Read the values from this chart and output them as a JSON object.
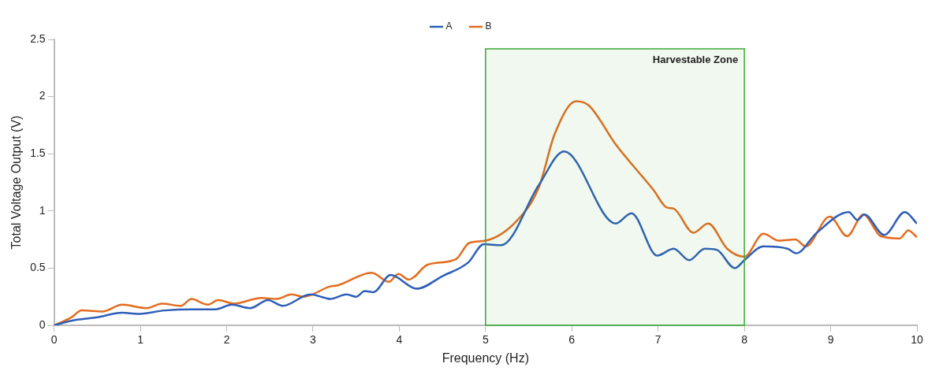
{
  "chart_data": {
    "type": "line",
    "xlabel": "Frequency (Hz)",
    "ylabel": "Total Voltage Output (V)",
    "xlim": [
      0,
      10
    ],
    "xticks": [
      0,
      1,
      2,
      3,
      4,
      5,
      6,
      7,
      8,
      9,
      10
    ],
    "ylim": [
      0,
      2.5
    ],
    "yticks": [
      0,
      0.5,
      1,
      1.5,
      2,
      2.5
    ],
    "grid": false,
    "legend": "top",
    "marker": "none",
    "line_style": "solid",
    "bands": [
      {
        "axis": "x",
        "from": 5,
        "to": 8,
        "label": "Harvestable Zone",
        "color": "#3aaa35"
      }
    ],
    "series": [
      {
        "name": "A",
        "color": "#2e5eb8",
        "x": [
          0,
          0.2,
          0.5,
          0.79,
          0.97,
          1.28,
          1.6,
          1.87,
          2.06,
          2.27,
          2.48,
          2.65,
          2.97,
          3.14,
          3.2,
          3.39,
          3.5,
          3.6,
          3.7,
          3.9,
          4.2,
          4.5,
          4.8,
          4.98,
          5.18,
          5.62,
          5.91,
          6.51,
          6.69,
          6.99,
          7.18,
          7.36,
          7.54,
          7.68,
          7.89,
          8.0,
          8.22,
          8.5,
          8.6,
          8.84,
          9.21,
          9.31,
          9.39,
          9.62,
          9.86,
          10.0
        ],
        "values": [
          0,
          0.04,
          0.07,
          0.11,
          0.1,
          0.13,
          0.14,
          0.14,
          0.18,
          0.15,
          0.22,
          0.17,
          0.27,
          0.24,
          0.23,
          0.27,
          0.25,
          0.3,
          0.29,
          0.44,
          0.32,
          0.43,
          0.55,
          0.71,
          0.7,
          1.23,
          1.52,
          0.89,
          0.98,
          0.61,
          0.67,
          0.57,
          0.67,
          0.66,
          0.5,
          0.57,
          0.69,
          0.67,
          0.63,
          0.81,
          0.99,
          0.92,
          0.97,
          0.79,
          0.99,
          0.89
        ]
      },
      {
        "name": "B",
        "color": "#e36c1e",
        "x": [
          0,
          0.2,
          0.32,
          0.56,
          0.79,
          1.07,
          1.25,
          1.47,
          1.59,
          1.78,
          1.9,
          2.09,
          2.4,
          2.58,
          2.75,
          2.89,
          3.2,
          3.29,
          3.68,
          3.88,
          3.99,
          4.11,
          4.33,
          4.66,
          4.81,
          5.0,
          5.37,
          5.62,
          5.8,
          6.05,
          6.2,
          6.51,
          6.95,
          7.1,
          7.18,
          7.41,
          7.58,
          7.8,
          8.0,
          8.22,
          8.4,
          8.59,
          8.71,
          8.99,
          9.19,
          9.38,
          9.58,
          9.8,
          9.9,
          10.0
        ],
        "values": [
          0,
          0.07,
          0.13,
          0.12,
          0.18,
          0.15,
          0.19,
          0.17,
          0.23,
          0.18,
          0.22,
          0.19,
          0.24,
          0.23,
          0.27,
          0.25,
          0.34,
          0.35,
          0.46,
          0.38,
          0.45,
          0.4,
          0.53,
          0.58,
          0.72,
          0.74,
          0.92,
          1.21,
          1.67,
          1.96,
          1.92,
          1.58,
          1.18,
          1.03,
          1.02,
          0.81,
          0.89,
          0.67,
          0.6,
          0.8,
          0.74,
          0.75,
          0.69,
          0.95,
          0.78,
          0.97,
          0.78,
          0.76,
          0.83,
          0.77
        ]
      }
    ]
  }
}
